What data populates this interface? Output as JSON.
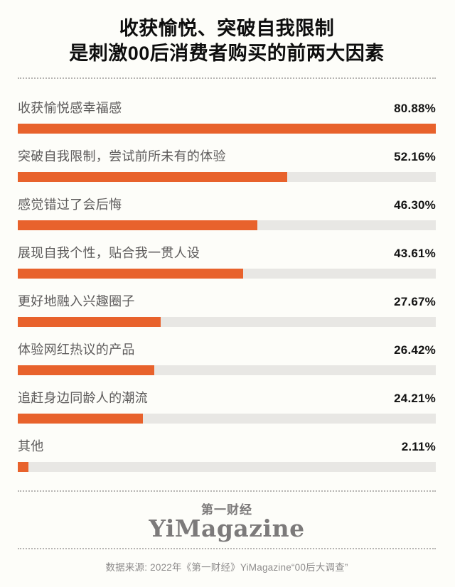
{
  "title": {
    "line1": "收获愉悦、突破自我限制",
    "line2": "是刺激00后消费者购买的前两大因素"
  },
  "chart_data": {
    "type": "bar",
    "orientation": "horizontal",
    "title": "收获愉悦、突破自我限制 是刺激00后消费者购买的前两大因素",
    "categories": [
      "收获愉悦感幸福感",
      "突破自我限制，尝试前所未有的体验",
      "感觉错过了会后悔",
      "展现自我个性，贴合我一贯人设",
      "更好地融入兴趣圈子",
      "体验网红热议的产品",
      "追赶身边同龄人的潮流",
      "其他"
    ],
    "values": [
      80.88,
      52.16,
      46.3,
      43.61,
      27.67,
      26.42,
      24.21,
      2.11
    ],
    "value_labels": [
      "80.88%",
      "52.16%",
      "46.30%",
      "43.61%",
      "27.67%",
      "26.42%",
      "24.21%",
      "2.11%"
    ],
    "unit": "%",
    "xlim": [
      0,
      80.88
    ],
    "scale_note": "bars normalized so the maximum value spans full track width",
    "grid": false,
    "legend": false,
    "bar_color": "#e8622c",
    "track_color": "#e8e7e4"
  },
  "footer": {
    "logo_cn": "第一财经",
    "logo_en": "YiMagazine",
    "source": "数据来源: 2022年《第一财经》YiMagazine“00后大调查”"
  }
}
